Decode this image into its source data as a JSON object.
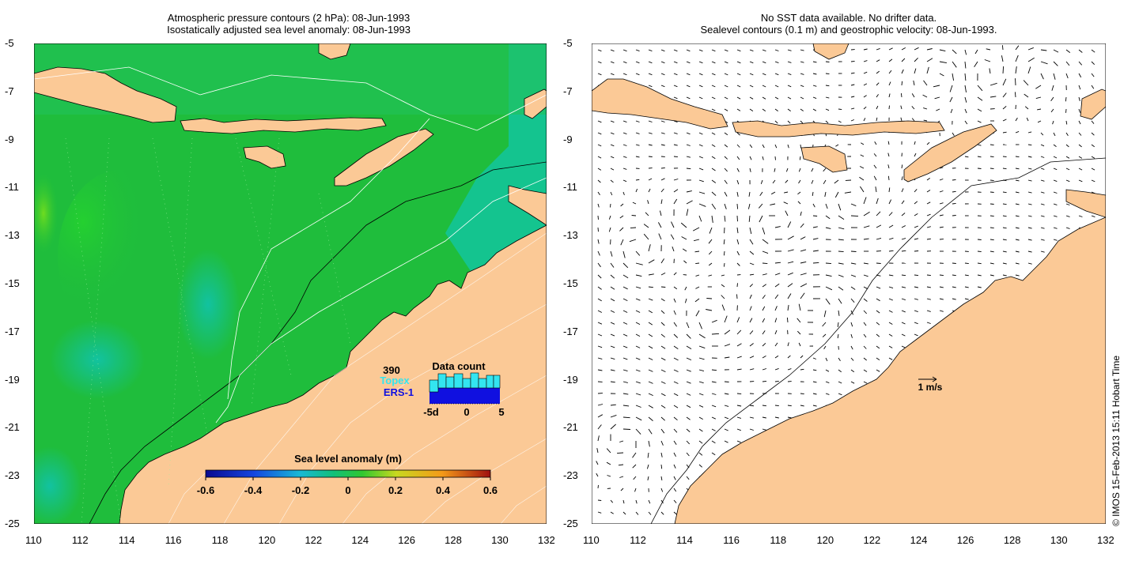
{
  "left_panel": {
    "title_line1": "Atmospheric pressure contours (2 hPa): 08-Jun-1993",
    "title_line2": "Isostatically adjusted sea level anomaly: 08-Jun-1993",
    "colorbar": {
      "title": "Sea level anomaly (m)",
      "ticks": [
        "-0.6",
        "-0.4",
        "-0.2",
        "0",
        "0.2",
        "0.4",
        "0.6"
      ],
      "range": [
        -0.6,
        0.6
      ]
    },
    "data_count": {
      "total": "390",
      "title": "Data count",
      "topex_label": "Topex",
      "ers_label": "ERS-1",
      "axis_ticks": [
        "-5d",
        "0",
        "5"
      ],
      "topex_color": "#33e5f0",
      "ers_color": "#1010e0"
    }
  },
  "right_panel": {
    "title_line1": "No SST data available.  No drifter data.",
    "title_line2": "Sealevel contours (0.1 m) and geostrophic velocity: 08-Jun-1993.",
    "scale_label": "1 m/s"
  },
  "axes": {
    "lat_ticks": [
      "-5",
      "-7",
      "-9",
      "-11",
      "-13",
      "-15",
      "-17",
      "-19",
      "-21",
      "-23",
      "-25"
    ],
    "lon_ticks": [
      "110",
      "112",
      "114",
      "116",
      "118",
      "120",
      "122",
      "124",
      "126",
      "128",
      "130",
      "132"
    ]
  },
  "copyright": "© IMOS 15-Feb-2013 15:11 Hobart Time",
  "colors": {
    "land": "#fbc996",
    "ocean_base": "#1fbd3c",
    "ocean_teal": "#13c39a"
  }
}
